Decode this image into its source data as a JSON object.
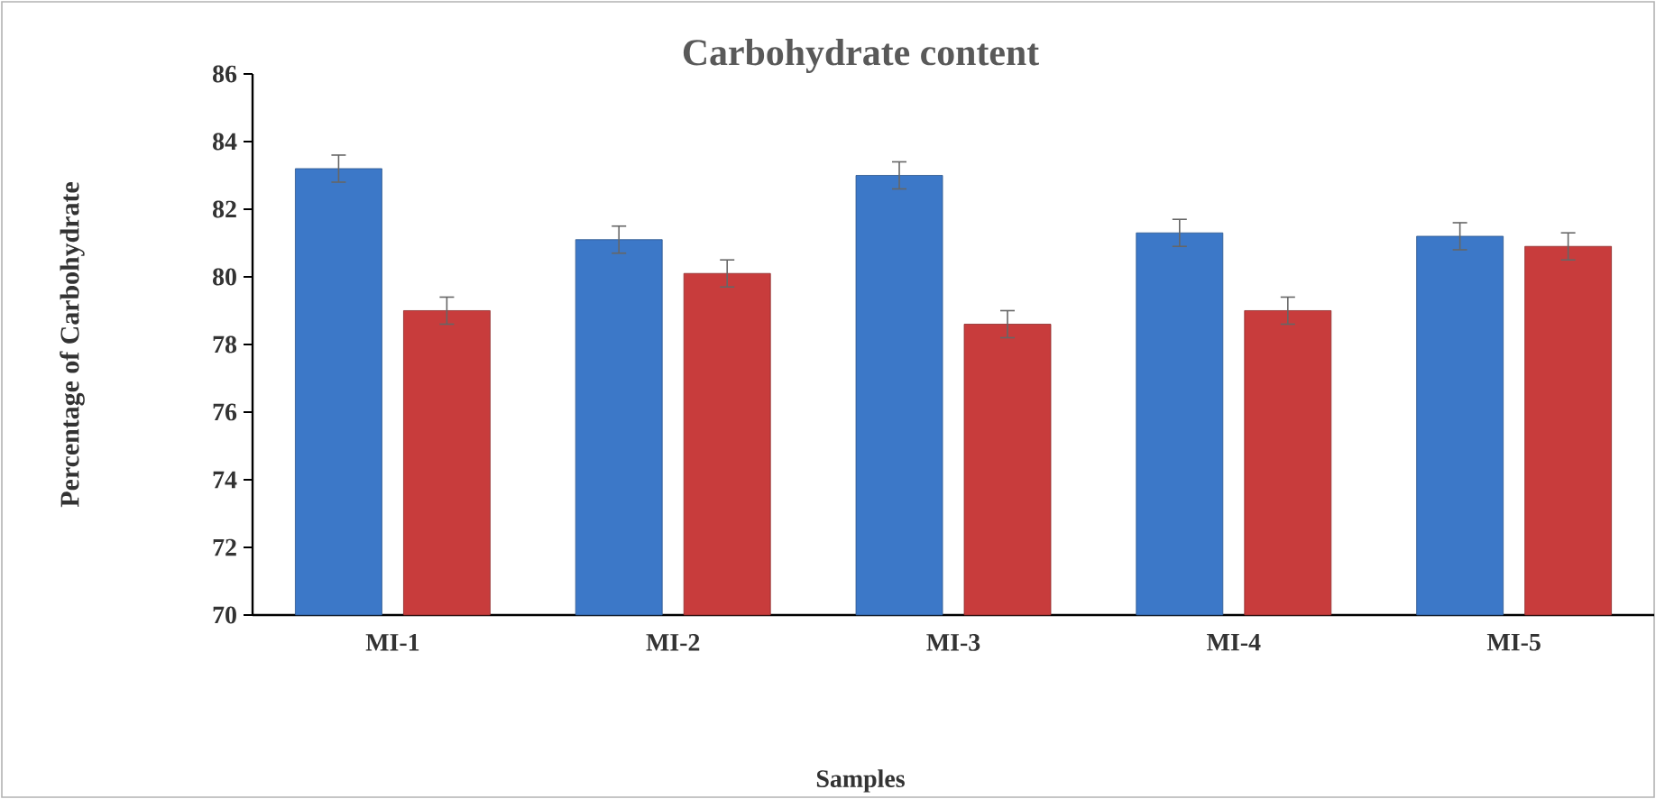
{
  "chart_data": {
    "type": "bar",
    "title": "Carbohydrate  content",
    "xlabel": "Samples",
    "ylabel": "Percentage of Carbohydrate",
    "categories": [
      "MI-1",
      "MI-2",
      "MI-3",
      "MI-4",
      "MI-5"
    ],
    "series": [
      {
        "color": "#3c78c8",
        "values": [
          83.2,
          81.1,
          83.0,
          81.3,
          81.2
        ],
        "errors": [
          0.4,
          0.4,
          0.4,
          0.4,
          0.4
        ]
      },
      {
        "color": "#c83c3c",
        "values": [
          79.0,
          80.1,
          78.6,
          79.0,
          80.9
        ],
        "errors": [
          0.4,
          0.4,
          0.4,
          0.4,
          0.4
        ]
      }
    ],
    "ylim": [
      70,
      86
    ],
    "yticks": [
      70,
      72,
      74,
      76,
      78,
      80,
      82,
      84,
      86
    ],
    "grid": false,
    "legend": false
  }
}
